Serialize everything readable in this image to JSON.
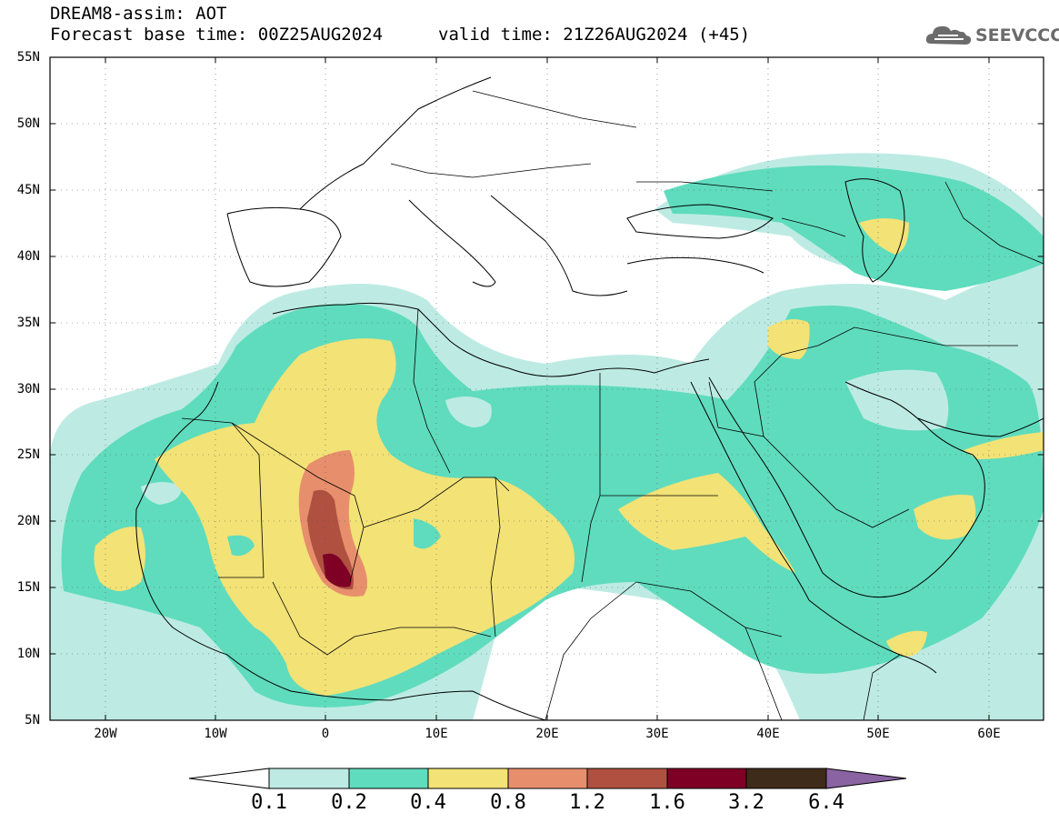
{
  "header": {
    "title": "DREAM8-assim: AOT",
    "base_time": "Forecast base time: 00Z25AUG2024",
    "valid_time": "valid time: 21Z26AUG2024 (+45)"
  },
  "logo": {
    "text": "SEEVCCC",
    "icon": "cloud-icon"
  },
  "map": {
    "lon_range": [
      -25,
      65
    ],
    "lat_range": [
      5,
      55
    ],
    "lat_labels": [
      "55N",
      "50N",
      "45N",
      "40N",
      "35N",
      "30N",
      "25N",
      "20N",
      "15N",
      "10N",
      "5N"
    ],
    "lon_labels": [
      "20W",
      "10W",
      "0",
      "10E",
      "20E",
      "30E",
      "40E",
      "50E",
      "60E"
    ],
    "grid": "dotted"
  },
  "colorbar": {
    "levels": [
      "0.1",
      "0.2",
      "0.4",
      "0.8",
      "1.2",
      "1.6",
      "3.2",
      "6.4"
    ],
    "colors": [
      "#ffffff",
      "#bdebe3",
      "#5fdcbd",
      "#f3e276",
      "#e78f6c",
      "#b05041",
      "#7e0025",
      "#3f2b1a",
      "#8a63a3"
    ]
  },
  "palette": {
    "c01": "#bdebe3",
    "c02": "#5fdcbd",
    "c04": "#f3e276",
    "c08": "#e78f6c",
    "c12": "#b05041",
    "c16": "#7e0025"
  }
}
